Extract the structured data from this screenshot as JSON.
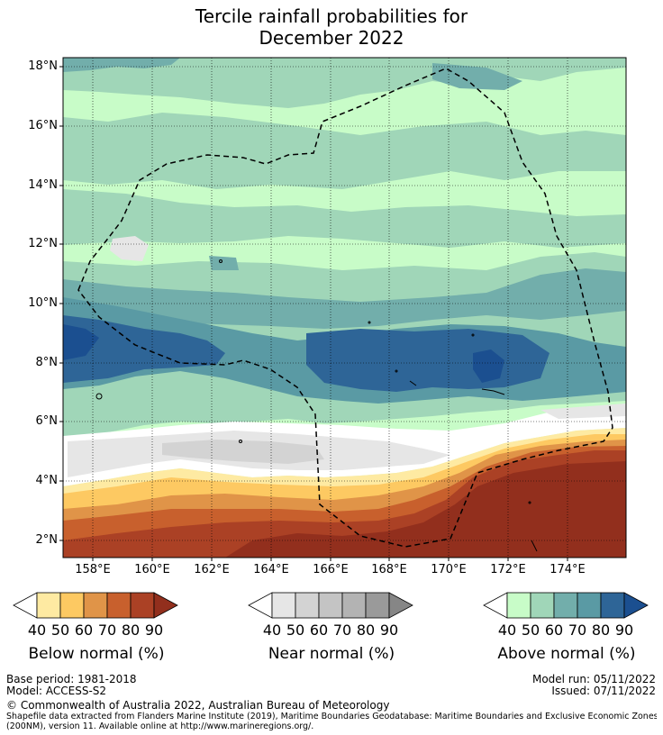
{
  "title": {
    "line1": "Tercile rainfall probabilities for",
    "line2": "December 2022"
  },
  "map": {
    "y_labels": [
      "18°N",
      "16°N",
      "14°N",
      "12°N",
      "10°N",
      "8°N",
      "6°N",
      "4°N",
      "2°N"
    ],
    "x_labels": [
      "158°E",
      "160°E",
      "162°E",
      "164°E",
      "166°E",
      "168°E",
      "170°E",
      "172°E",
      "174°E"
    ]
  },
  "colorbars": {
    "below": {
      "title": "Below normal (%)",
      "ticks": [
        "40",
        "50",
        "60",
        "70",
        "80",
        "90"
      ],
      "colors": [
        "#ffffff",
        "#feeaa2",
        "#fdc962",
        "#e09448",
        "#c8602d",
        "#ab4125",
        "#922f1d"
      ]
    },
    "near": {
      "title": "Near normal (%)",
      "ticks": [
        "40",
        "50",
        "60",
        "70",
        "80",
        "90"
      ],
      "colors": [
        "#ffffff",
        "#e6e6e6",
        "#d3d3d3",
        "#c4c4c4",
        "#b3b3b3",
        "#9a9a9a",
        "#868686"
      ]
    },
    "above": {
      "title": "Above normal (%)",
      "ticks": [
        "40",
        "50",
        "60",
        "70",
        "80",
        "90"
      ],
      "colors": [
        "#ffffff",
        "#c8fcc8",
        "#a0d6b8",
        "#72aeab",
        "#5a9aa4",
        "#2e6597",
        "#1b4f90"
      ]
    }
  },
  "footer": {
    "base_period": "Base period: 1981-2018",
    "model": "Model: ACCESS-S2",
    "model_run": "Model run: 05/11/2022",
    "issued": "Issued: 07/11/2022",
    "copyright": "© Commonwealth of Australia 2022, Australian Bureau of Meteorology",
    "source_line1": "Shapefile data extracted from Flanders Marine Institute (2019), Maritime Boundaries Geodatabase: Maritime Boundaries and Exclusive Economic Zones",
    "source_line2": "(200NM), version 11. Available online at http://www.marineregions.org/."
  }
}
